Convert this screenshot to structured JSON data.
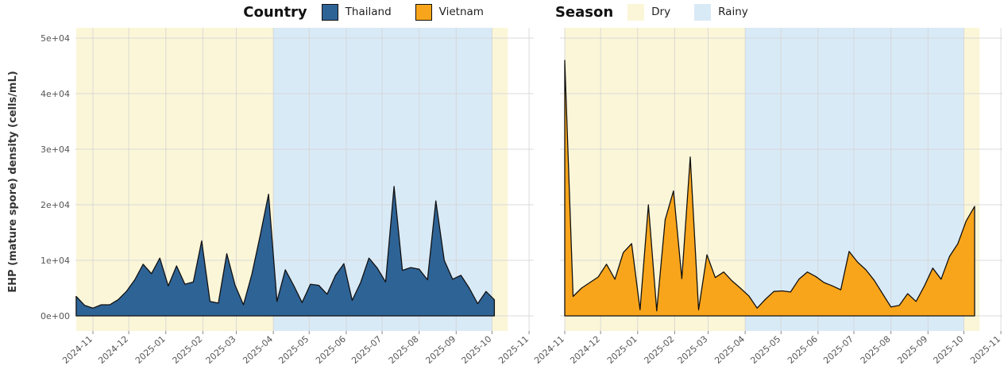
{
  "legend": {
    "country_title": "Country",
    "season_title": "Season",
    "country_items": [
      {
        "label": "Thailand",
        "color": "#2E6396"
      },
      {
        "label": "Vietnam",
        "color": "#F9A51B"
      }
    ],
    "season_items": [
      {
        "label": "Dry",
        "color": "#FBF6D8"
      },
      {
        "label": "Rainy",
        "color": "#D9EAF7"
      }
    ]
  },
  "y_axis": {
    "title": "EHP (mature spore) density (cells/mL)",
    "tick_labels": [
      "0e+00",
      "1e+04",
      "2e+04",
      "3e+04",
      "4e+04",
      "5e+04"
    ],
    "tick_values": [
      0,
      10000,
      20000,
      30000,
      40000,
      50000
    ]
  },
  "x_axis": {
    "tick_labels": [
      "2024-11",
      "2024-12",
      "2025-01",
      "2025-02",
      "2025-03",
      "2025-04",
      "2025-05",
      "2025-06",
      "2025-07",
      "2025-08",
      "2025-09",
      "2025-10",
      "2025-11"
    ]
  },
  "chart_data": {
    "type": "area",
    "title": "",
    "ylabel": "EHP (mature spore) density (cells/mL)",
    "xlabel": "",
    "ylim": [
      0,
      50000
    ],
    "grid": true,
    "legend_position": "top",
    "facets": [
      "Thailand",
      "Vietnam"
    ],
    "x_unit": "weekly samples; week 0 = 2024-11-01",
    "month_tick_labels": [
      "2024-11",
      "2024-12",
      "2025-01",
      "2025-02",
      "2025-03",
      "2025-04",
      "2025-05",
      "2025-06",
      "2025-07",
      "2025-08",
      "2025-09",
      "2025-10",
      "2025-11"
    ],
    "month_week_offsets": [
      0,
      4.286,
      8.714,
      13.143,
      17.143,
      21.571,
      25.857,
      30.286,
      34.571,
      39.0,
      43.429,
      47.714,
      52.143
    ],
    "season_bands": [
      {
        "season": "Dry",
        "from_week": -2.0,
        "to_week": 21.571,
        "color": "#FBF6D8"
      },
      {
        "season": "Rainy",
        "from_week": 21.571,
        "to_week": 47.714,
        "color": "#D9EAF7"
      },
      {
        "season": "Dry",
        "from_week": 47.714,
        "to_week": 49.6,
        "color": "#FBF6D8"
      }
    ],
    "series": [
      {
        "name": "Thailand",
        "color": "#2E6396",
        "line_color": "#111111",
        "start_week": -2,
        "values": [
          3500,
          1900,
          1400,
          2000,
          2000,
          2900,
          4400,
          6500,
          9300,
          7600,
          10400,
          5400,
          9000,
          5700,
          6100,
          13500,
          2600,
          2300,
          11200,
          5500,
          2000,
          7500,
          14500,
          21900,
          2600,
          8300,
          5500,
          2400,
          5700,
          5500,
          3900,
          7300,
          9400,
          2800,
          6000,
          10400,
          8600,
          6100,
          23300,
          8200,
          8700,
          8400,
          6500,
          20700,
          10000,
          6600,
          7300,
          5000,
          2200,
          4400,
          2900
        ]
      },
      {
        "name": "Vietnam",
        "color": "#F9A51B",
        "line_color": "#111111",
        "start_week": 0,
        "values": [
          46000,
          3500,
          5000,
          6000,
          7000,
          9300,
          6600,
          11400,
          13000,
          1100,
          20000,
          900,
          17300,
          22500,
          6700,
          28600,
          1100,
          11000,
          6900,
          7900,
          6300,
          5000,
          3600,
          1400,
          3000,
          4400,
          4500,
          4300,
          6600,
          7900,
          7100,
          6000,
          5400,
          4700,
          11600,
          9700,
          8300,
          6400,
          4000,
          1600,
          1900,
          4000,
          2600,
          5400,
          8600,
          6600,
          10700,
          13000,
          17100,
          19700
        ]
      }
    ]
  }
}
